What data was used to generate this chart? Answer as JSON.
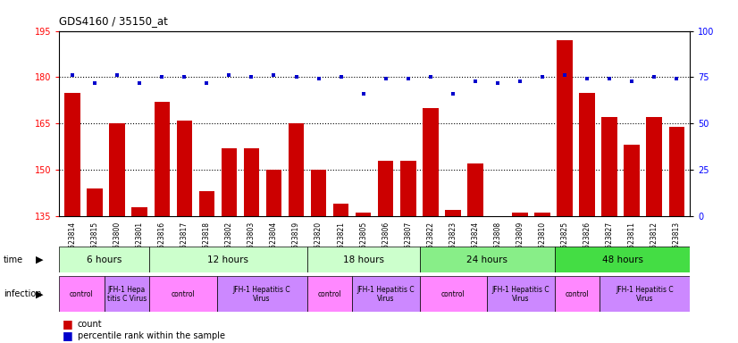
{
  "title": "GDS4160 / 35150_at",
  "samples": [
    "GSM523814",
    "GSM523815",
    "GSM523800",
    "GSM523801",
    "GSM523816",
    "GSM523817",
    "GSM523818",
    "GSM523802",
    "GSM523803",
    "GSM523804",
    "GSM523819",
    "GSM523820",
    "GSM523821",
    "GSM523805",
    "GSM523806",
    "GSM523807",
    "GSM523822",
    "GSM523823",
    "GSM523824",
    "GSM523808",
    "GSM523809",
    "GSM523810",
    "GSM523825",
    "GSM523826",
    "GSM523827",
    "GSM523811",
    "GSM523812",
    "GSM523813"
  ],
  "counts": [
    175,
    144,
    165,
    138,
    172,
    166,
    143,
    157,
    157,
    150,
    165,
    150,
    139,
    136,
    153,
    153,
    170,
    137,
    152,
    135,
    136,
    136,
    192,
    175,
    167,
    158,
    167,
    164
  ],
  "percentiles": [
    76,
    72,
    76,
    72,
    75,
    75,
    72,
    76,
    75,
    76,
    75,
    74,
    75,
    66,
    74,
    74,
    75,
    66,
    73,
    72,
    73,
    75,
    76,
    74,
    74,
    73,
    75,
    74
  ],
  "ylim_left": [
    135,
    195
  ],
  "ylim_right": [
    0,
    100
  ],
  "yticks_left": [
    135,
    150,
    165,
    180,
    195
  ],
  "yticks_right": [
    0,
    25,
    50,
    75,
    100
  ],
  "bar_bottom": 135,
  "bar_color": "#cc0000",
  "dot_color": "#0000cc",
  "time_groups": [
    {
      "label": "6 hours",
      "start": 0,
      "end": 4,
      "color": "#ccffcc"
    },
    {
      "label": "12 hours",
      "start": 4,
      "end": 11,
      "color": "#ccffcc"
    },
    {
      "label": "18 hours",
      "start": 11,
      "end": 16,
      "color": "#ccffcc"
    },
    {
      "label": "24 hours",
      "start": 16,
      "end": 22,
      "color": "#88ee88"
    },
    {
      "label": "48 hours",
      "start": 22,
      "end": 28,
      "color": "#44dd44"
    }
  ],
  "infection_groups": [
    {
      "label": "control",
      "start": 0,
      "end": 2,
      "color": "#ff88ff"
    },
    {
      "label": "JFH-1 Hepa\ntitis C Virus",
      "start": 2,
      "end": 4,
      "color": "#cc88ff"
    },
    {
      "label": "control",
      "start": 4,
      "end": 7,
      "color": "#ff88ff"
    },
    {
      "label": "JFH-1 Hepatitis C\nVirus",
      "start": 7,
      "end": 11,
      "color": "#cc88ff"
    },
    {
      "label": "control",
      "start": 11,
      "end": 13,
      "color": "#ff88ff"
    },
    {
      "label": "JFH-1 Hepatitis C\nVirus",
      "start": 13,
      "end": 16,
      "color": "#cc88ff"
    },
    {
      "label": "control",
      "start": 16,
      "end": 19,
      "color": "#ff88ff"
    },
    {
      "label": "JFH-1 Hepatitis C\nVirus",
      "start": 19,
      "end": 22,
      "color": "#cc88ff"
    },
    {
      "label": "control",
      "start": 22,
      "end": 24,
      "color": "#ff88ff"
    },
    {
      "label": "JFH-1 Hepatitis C\nVirus",
      "start": 24,
      "end": 28,
      "color": "#cc88ff"
    }
  ],
  "bg_color": "#f0f0f0"
}
